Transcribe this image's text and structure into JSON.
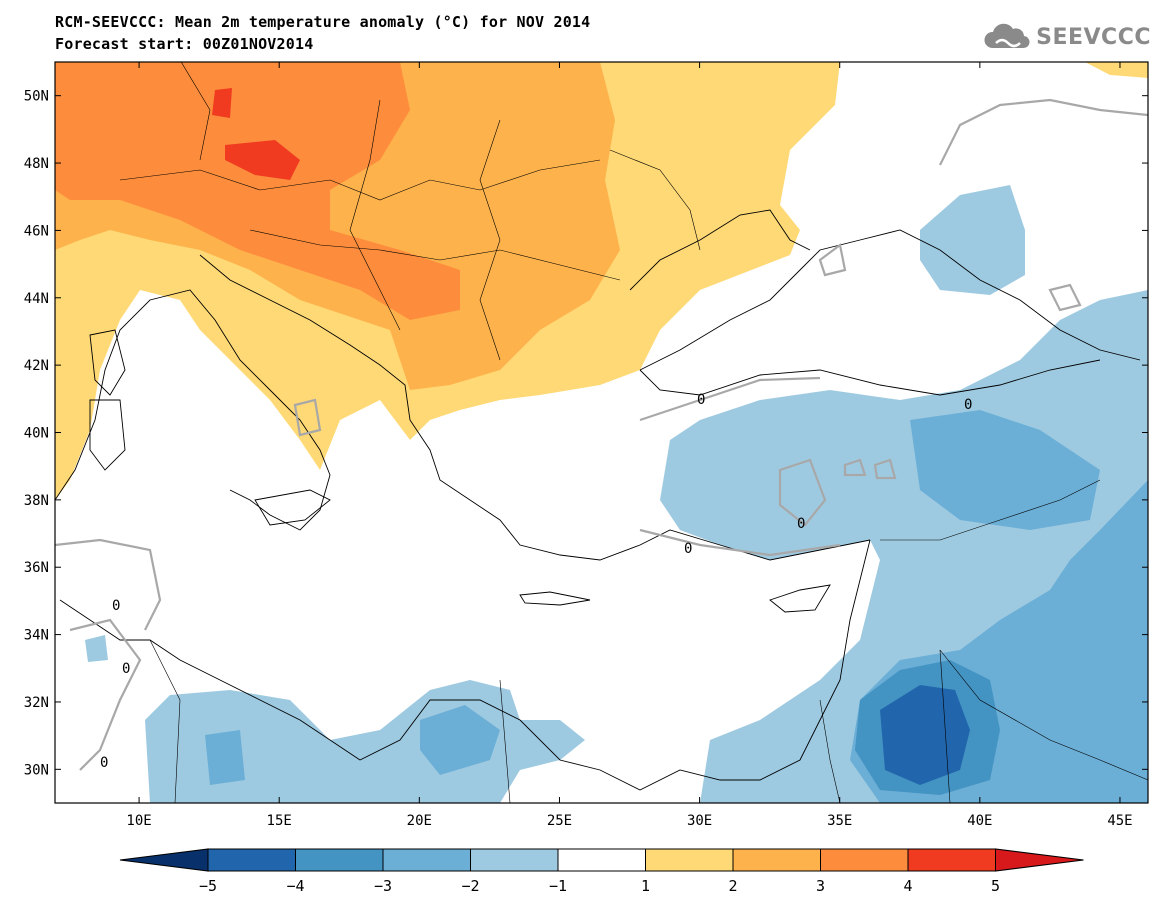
{
  "title_line1": "RCM-SEEVCCC: Mean 2m temperature anomaly (°C) for NOV 2014",
  "title_line2": "Forecast start: 00Z01NOV2014",
  "logo": {
    "text": "SEEVCCC",
    "icon": "cloud-icon"
  },
  "map": {
    "lon_range": [
      7,
      46
    ],
    "lat_range": [
      29,
      51
    ],
    "lon_ticks": [
      "10E",
      "15E",
      "20E",
      "25E",
      "30E",
      "35E",
      "40E",
      "45E"
    ],
    "lon_tick_values": [
      10,
      15,
      20,
      25,
      30,
      35,
      40,
      45
    ],
    "lat_ticks": [
      "50N",
      "48N",
      "46N",
      "44N",
      "42N",
      "40N",
      "38N",
      "36N",
      "34N",
      "32N",
      "30N"
    ],
    "lat_tick_values": [
      50,
      48,
      46,
      44,
      42,
      40,
      38,
      36,
      34,
      32,
      30
    ],
    "contour_label": "0"
  },
  "colorbar": {
    "labels": [
      "−5",
      "−4",
      "−3",
      "−2",
      "−1",
      "1",
      "2",
      "3",
      "4",
      "5"
    ],
    "colors": [
      "#08306b",
      "#2166ac",
      "#4393c3",
      "#6baed6",
      "#9ecae1",
      "#ffffff",
      "#fed976",
      "#feb24c",
      "#fd8d3c",
      "#f03b20",
      "#d7191c"
    ]
  }
}
